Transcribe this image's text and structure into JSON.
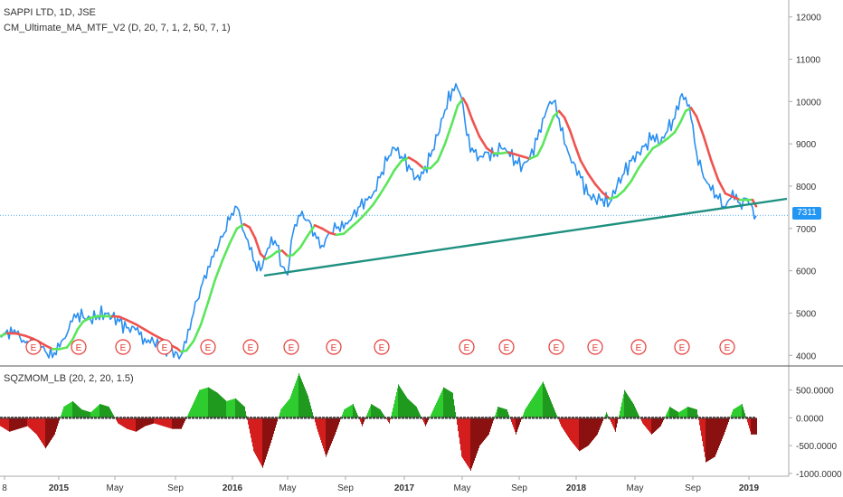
{
  "header": {
    "symbol_line": "SAPPI LTD, 1D, JSE",
    "indicator_line": "CM_Ultimate_MA_MTF_V2 (D, 20, 7, 1, 2, 50, 7, 1)",
    "oscillator_line": "SQZMOM_LB (20, 2, 20, 1.5)"
  },
  "price_tag": "7311",
  "earnings_marker_label": "E",
  "colors": {
    "price": "#2a8ff0",
    "ma_up": "#5be65b",
    "ma_down": "#ef5350",
    "trendline": "#1e9080",
    "hist_up": "#2ecc2e",
    "hist_down": "#d41e1e",
    "marker": "#e53935",
    "price_tag_bg": "#2196f3"
  },
  "chart_data": [
    {
      "type": "line",
      "x_ticks": [
        "8",
        "2015",
        "May",
        "Sep",
        "2016",
        "May",
        "Sep",
        "2017",
        "May",
        "Sep",
        "2018",
        "May",
        "Sep",
        "2019"
      ],
      "y_ticks": [
        "4000",
        "5000",
        "6000",
        "7000",
        "8000",
        "9000",
        "10000",
        "11000",
        "12000"
      ],
      "ylim": [
        3750,
        12400
      ],
      "series": [
        {
          "x": [
            0,
            8,
            18,
            28,
            36,
            42,
            50,
            58,
            66,
            74,
            80,
            86,
            92,
            100,
            108,
            116,
            124,
            132,
            140,
            150,
            160,
            170,
            180,
            188,
            196,
            200,
            206,
            214,
            222,
            230,
            238,
            246,
            254,
            262,
            270,
            276,
            282,
            288,
            294,
            300,
            306,
            312,
            318,
            324,
            332,
            340,
            348,
            356,
            364,
            372,
            380,
            388,
            396,
            404,
            412,
            420,
            428,
            436,
            444,
            452,
            460,
            468,
            476,
            484,
            492,
            500,
            506,
            512,
            516,
            522,
            530,
            538,
            546,
            554,
            562,
            570,
            578,
            586,
            594,
            600,
            606,
            612,
            618,
            624,
            630,
            636,
            642,
            650,
            658,
            666,
            674,
            682,
            690,
            698,
            706,
            714,
            722,
            730,
            738,
            746,
            752,
            758,
            764,
            770,
            778,
            786,
            794,
            802,
            810,
            818,
            826,
            832,
            836
          ],
          "y": [
            4450,
            4600,
            4500,
            4300,
            4200,
            4350,
            4100,
            3950,
            4200,
            4500,
            4800,
            5000,
            4900,
            4850,
            4950,
            5000,
            4900,
            4800,
            4650,
            4600,
            4400,
            4300,
            4200,
            4100,
            4050,
            4000,
            4300,
            5000,
            5600,
            6100,
            6500,
            6800,
            7200,
            7500,
            6900,
            6500,
            6200,
            6000,
            6400,
            6800,
            6600,
            6100,
            5900,
            6900,
            7300,
            7200,
            6900,
            6600,
            6900,
            7000,
            7000,
            7200,
            7500,
            7700,
            7800,
            8200,
            8600,
            8900,
            8700,
            8500,
            8200,
            8300,
            8700,
            9200,
            9800,
            10300,
            10300,
            9900,
            9200,
            8900,
            8700,
            8800,
            8700,
            8900,
            8800,
            8600,
            8500,
            8700,
            9100,
            9600,
            9900,
            10000,
            9600,
            9000,
            8700,
            8500,
            8200,
            7800,
            7700,
            7700,
            7600,
            8000,
            8300,
            8600,
            8800,
            9000,
            9200,
            9000,
            9300,
            9600,
            10100,
            10100,
            9600,
            8800,
            8200,
            7900,
            7700,
            7500,
            7900,
            7600,
            7700,
            7500,
            7300
          ]
        }
      ]
    },
    {
      "type": "bar",
      "title": "SQZMOM_LB (20, 2, 20, 1.5)",
      "y_ticks": [
        "500.0000",
        "0.0000",
        "-500.0000",
        "-1000.0000"
      ],
      "ylim": [
        -1050,
        900
      ],
      "series": [
        {
          "x": [
            0,
            10,
            20,
            30,
            40,
            50,
            60,
            70,
            80,
            90,
            100,
            110,
            120,
            130,
            140,
            150,
            160,
            170,
            180,
            190,
            200,
            210,
            220,
            230,
            240,
            250,
            260,
            270,
            280,
            290,
            300,
            310,
            320,
            330,
            340,
            350,
            360,
            370,
            380,
            390,
            400,
            410,
            420,
            430,
            440,
            450,
            460,
            470,
            480,
            490,
            500,
            510,
            520,
            530,
            540,
            550,
            560,
            570,
            580,
            590,
            600,
            610,
            620,
            630,
            640,
            650,
            660,
            670,
            680,
            690,
            700,
            710,
            720,
            730,
            740,
            750,
            760,
            770,
            780,
            790,
            800,
            810,
            820,
            830
          ],
          "y": [
            -150,
            -250,
            -200,
            -150,
            -300,
            -550,
            -300,
            200,
            300,
            150,
            100,
            250,
            200,
            -100,
            -200,
            -250,
            -150,
            -100,
            -150,
            -200,
            -200,
            150,
            500,
            550,
            450,
            300,
            350,
            200,
            -600,
            -900,
            -400,
            150,
            350,
            800,
            400,
            -200,
            -700,
            -300,
            150,
            250,
            -150,
            250,
            150,
            -100,
            600,
            350,
            200,
            -150,
            200,
            550,
            450,
            -700,
            -950,
            -500,
            -300,
            200,
            150,
            -300,
            150,
            400,
            650,
            250,
            -150,
            -400,
            -600,
            -500,
            -300,
            100,
            -250,
            500,
            250,
            -100,
            -300,
            -150,
            200,
            100,
            200,
            150,
            -800,
            -700,
            -300,
            150,
            250,
            -300
          ]
        }
      ]
    }
  ]
}
